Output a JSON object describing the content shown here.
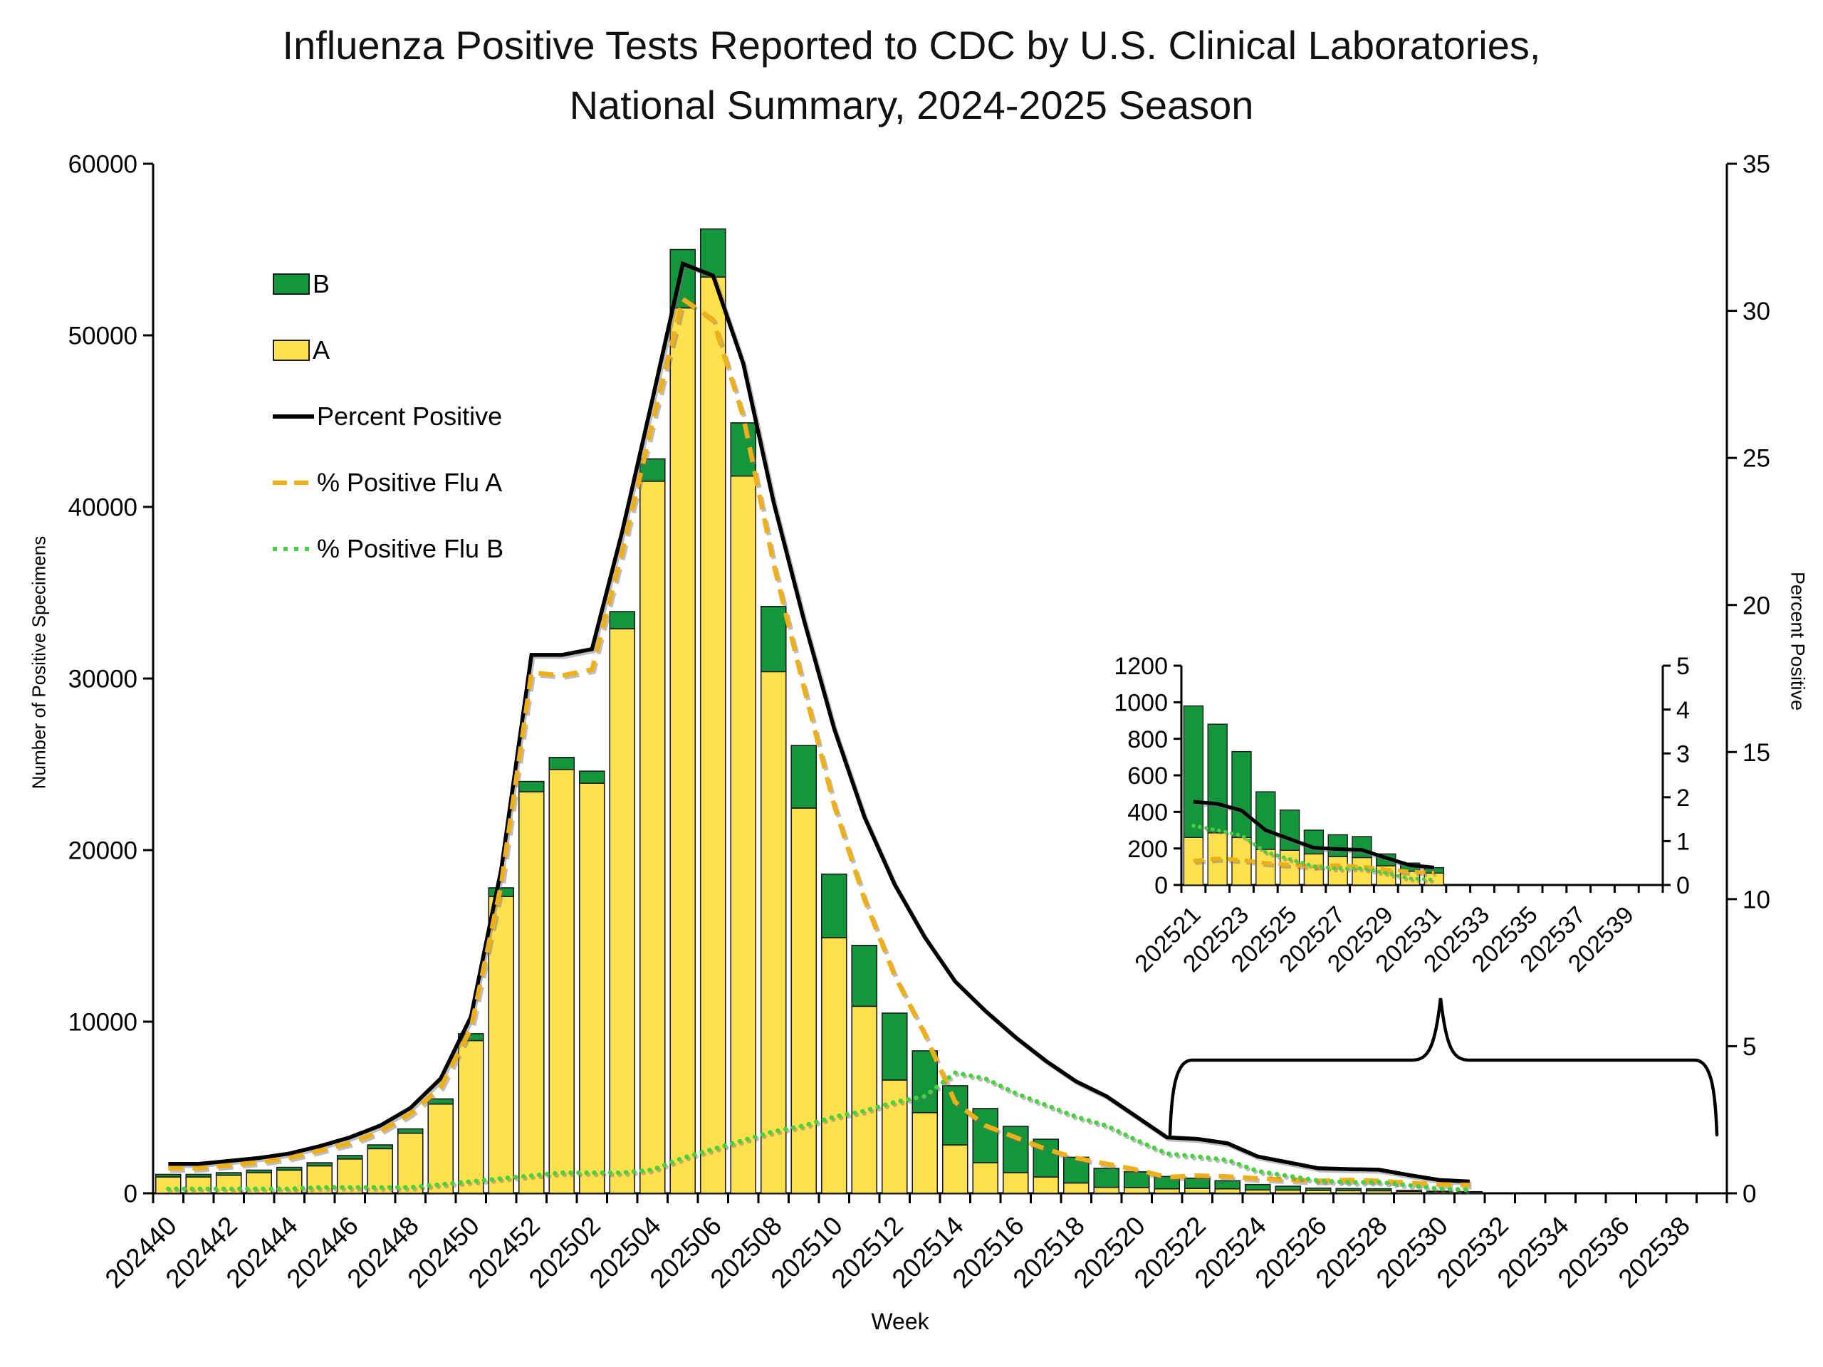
{
  "title": {
    "line1": "Influenza Positive Tests Reported to CDC by U.S. Clinical Laboratories,",
    "line2": "National Summary, 2024-2025 Season"
  },
  "axis_titles": {
    "left": "Number of Positive Specimens",
    "right": "Percent Positive",
    "bottom": "Week"
  },
  "legend": {
    "items": [
      {
        "label": "B",
        "swatch": "green-box"
      },
      {
        "label": "A",
        "swatch": "yellow-box"
      },
      {
        "label": "Percent Positive",
        "swatch": "black-solid-line"
      },
      {
        "label": "% Positive Flu A",
        "swatch": "yellow-dashed-line"
      },
      {
        "label": "% Positive Flu B",
        "swatch": "green-dotted-line"
      }
    ]
  },
  "colors": {
    "flu_a_yellow": "#FFE14F",
    "flu_b_green": "#14963C",
    "pct_positive_black": "#000000",
    "pct_flu_a_dash": "#EFAF16",
    "pct_flu_b_dot": "#46D23C",
    "axis_black": "#000000",
    "bar_outline": "#1c1c1c"
  },
  "chart_data": [
    {
      "id": "main",
      "type": "bar",
      "subtype": "stacked bars with overlaid percent lines",
      "title": "Influenza Positive Tests Reported to CDC by U.S. Clinical Laboratories, National Summary, 2024-2025 Season",
      "xlabel": "Week",
      "ylabel_left": "Number of Positive Specimens",
      "ylabel_right": "Percent Positive",
      "ylim_left": [
        0,
        60000
      ],
      "yticks_left": [
        0,
        10000,
        20000,
        30000,
        40000,
        50000,
        60000
      ],
      "ylim_right": [
        0,
        35
      ],
      "yticks_right": [
        0,
        5,
        10,
        15,
        20,
        25,
        30,
        35
      ],
      "label_every": 2,
      "grid": false,
      "legend_position": "upper-left-inside",
      "weeks": [
        "202440",
        "202441",
        "202442",
        "202443",
        "202444",
        "202445",
        "202446",
        "202447",
        "202448",
        "202449",
        "202450",
        "202451",
        "202452",
        "202501",
        "202502",
        "202503",
        "202504",
        "202505",
        "202506",
        "202507",
        "202508",
        "202509",
        "202510",
        "202511",
        "202512",
        "202513",
        "202514",
        "202515",
        "202516",
        "202517",
        "202518",
        "202519",
        "202520",
        "202521",
        "202522",
        "202523",
        "202524",
        "202525",
        "202526",
        "202527",
        "202528",
        "202529",
        "202530",
        "202531",
        "202532",
        "202533",
        "202534",
        "202535",
        "202536",
        "202537",
        "202538",
        "202539"
      ],
      "series": [
        {
          "name": "A",
          "kind": "bar",
          "color": "flu_a_yellow",
          "axis": "left",
          "values": [
            950,
            950,
            1050,
            1200,
            1350,
            1600,
            2000,
            2600,
            3500,
            5200,
            8900,
            17300,
            23400,
            24700,
            23900,
            32900,
            41500,
            51600,
            53400,
            41800,
            30400,
            22450,
            14900,
            10900,
            6600,
            4700,
            2820,
            1780,
            1200,
            950,
            600,
            350,
            330,
            260,
            285,
            260,
            195,
            190,
            170,
            155,
            150,
            105,
            75,
            65,
            null,
            null,
            null,
            null,
            null,
            null,
            null,
            null
          ]
        },
        {
          "name": "B",
          "kind": "bar",
          "color": "flu_b_green",
          "axis": "left",
          "values": [
            150,
            150,
            150,
            150,
            160,
            180,
            200,
            220,
            250,
            300,
            400,
            500,
            600,
            700,
            700,
            1000,
            1300,
            3400,
            2800,
            3100,
            3800,
            3650,
            3700,
            3550,
            3900,
            3600,
            3450,
            3160,
            2700,
            2200,
            1500,
            1100,
            920,
            720,
            595,
            470,
            315,
            220,
            130,
            120,
            115,
            65,
            45,
            30,
            null,
            null,
            null,
            null,
            null,
            null,
            null,
            null
          ]
        },
        {
          "name": "Percent Positive",
          "kind": "line",
          "dash": "solid",
          "color": "pct_positive_black",
          "axis": "right",
          "values": [
            1.0,
            1.0,
            1.1,
            1.2,
            1.35,
            1.6,
            1.9,
            2.3,
            2.9,
            3.9,
            6.0,
            11.0,
            18.3,
            18.3,
            18.5,
            22.5,
            27.0,
            31.6,
            31.2,
            28.2,
            23.5,
            19.5,
            15.8,
            12.8,
            10.5,
            8.7,
            7.2,
            6.2,
            5.3,
            4.5,
            3.8,
            3.3,
            2.6,
            1.9,
            1.85,
            1.7,
            1.25,
            1.05,
            0.85,
            0.82,
            0.8,
            0.62,
            0.45,
            0.4,
            null,
            null,
            null,
            null,
            null,
            null,
            null,
            null
          ]
        },
        {
          "name": "% Positive Flu A",
          "kind": "line",
          "dash": "dashed",
          "color": "pct_flu_a_dash",
          "axis": "right",
          "values": [
            0.85,
            0.85,
            0.95,
            1.05,
            1.2,
            1.45,
            1.7,
            2.1,
            2.7,
            3.6,
            5.6,
            10.5,
            17.7,
            17.6,
            17.8,
            21.8,
            26.2,
            30.4,
            29.7,
            26.4,
            21.4,
            17.2,
            13.2,
            10.0,
            7.4,
            5.4,
            3.1,
            2.3,
            1.9,
            1.5,
            1.2,
            1.0,
            0.8,
            0.55,
            0.6,
            0.57,
            0.5,
            0.46,
            0.42,
            0.45,
            0.42,
            0.35,
            0.3,
            0.28,
            null,
            null,
            null,
            null,
            null,
            null,
            null,
            null
          ]
        },
        {
          "name": "% Positive Flu B",
          "kind": "line",
          "dash": "dotted",
          "color": "pct_flu_b_dot",
          "axis": "right",
          "values": [
            0.15,
            0.15,
            0.15,
            0.15,
            0.15,
            0.2,
            0.2,
            0.2,
            0.2,
            0.3,
            0.4,
            0.5,
            0.6,
            0.7,
            0.7,
            0.7,
            0.8,
            1.2,
            1.5,
            1.8,
            2.1,
            2.3,
            2.6,
            2.8,
            3.1,
            3.3,
            4.1,
            3.9,
            3.4,
            3.0,
            2.6,
            2.3,
            1.8,
            1.35,
            1.25,
            1.13,
            0.75,
            0.59,
            0.43,
            0.37,
            0.38,
            0.27,
            0.15,
            0.12,
            null,
            null,
            null,
            null,
            null,
            null,
            null,
            null
          ]
        }
      ]
    },
    {
      "id": "inset",
      "type": "bar",
      "subtype": "magnified view of season tail weeks",
      "title": "",
      "xlabel": "",
      "ylabel_left": "",
      "ylabel_right": "",
      "ylim_left": [
        0,
        1200
      ],
      "yticks_left": [
        0,
        200,
        400,
        600,
        800,
        1000,
        1200
      ],
      "ylim_right": [
        0,
        5
      ],
      "yticks_right": [
        0,
        1,
        2,
        3,
        4,
        5
      ],
      "label_every": 2,
      "grid": false,
      "weeks": [
        "202521",
        "202522",
        "202523",
        "202524",
        "202525",
        "202526",
        "202527",
        "202528",
        "202529",
        "202530",
        "202531",
        "202532",
        "202533",
        "202534",
        "202535",
        "202536",
        "202537",
        "202538",
        "202539",
        "202540"
      ],
      "series": [
        {
          "name": "A",
          "kind": "bar",
          "color": "flu_a_yellow",
          "axis": "left",
          "values": [
            260,
            285,
            260,
            195,
            190,
            170,
            155,
            150,
            105,
            75,
            65,
            null,
            null,
            null,
            null,
            null,
            null,
            null,
            null,
            null
          ]
        },
        {
          "name": "B",
          "kind": "bar",
          "color": "flu_b_green",
          "axis": "left",
          "values": [
            720,
            595,
            470,
            315,
            220,
            130,
            120,
            115,
            65,
            45,
            30,
            null,
            null,
            null,
            null,
            null,
            null,
            null,
            null,
            null
          ]
        },
        {
          "name": "Percent Positive",
          "kind": "line",
          "dash": "solid",
          "color": "pct_positive_black",
          "axis": "right",
          "values": [
            1.9,
            1.85,
            1.7,
            1.25,
            1.05,
            0.85,
            0.82,
            0.8,
            0.62,
            0.45,
            0.4,
            null,
            null,
            null,
            null,
            null,
            null,
            null,
            null,
            null
          ]
        },
        {
          "name": "% Positive Flu A",
          "kind": "line",
          "dash": "dashed",
          "color": "pct_flu_a_dash",
          "axis": "right",
          "values": [
            0.55,
            0.6,
            0.57,
            0.5,
            0.46,
            0.42,
            0.45,
            0.42,
            0.35,
            0.3,
            0.28,
            null,
            null,
            null,
            null,
            null,
            null,
            null,
            null,
            null
          ]
        },
        {
          "name": "% Positive Flu B",
          "kind": "line",
          "dash": "dotted",
          "color": "pct_flu_b_dot",
          "axis": "right",
          "values": [
            1.35,
            1.25,
            1.13,
            0.75,
            0.59,
            0.43,
            0.37,
            0.38,
            0.27,
            0.15,
            0.12,
            null,
            null,
            null,
            null,
            null,
            null,
            null,
            null,
            null
          ]
        }
      ]
    }
  ]
}
